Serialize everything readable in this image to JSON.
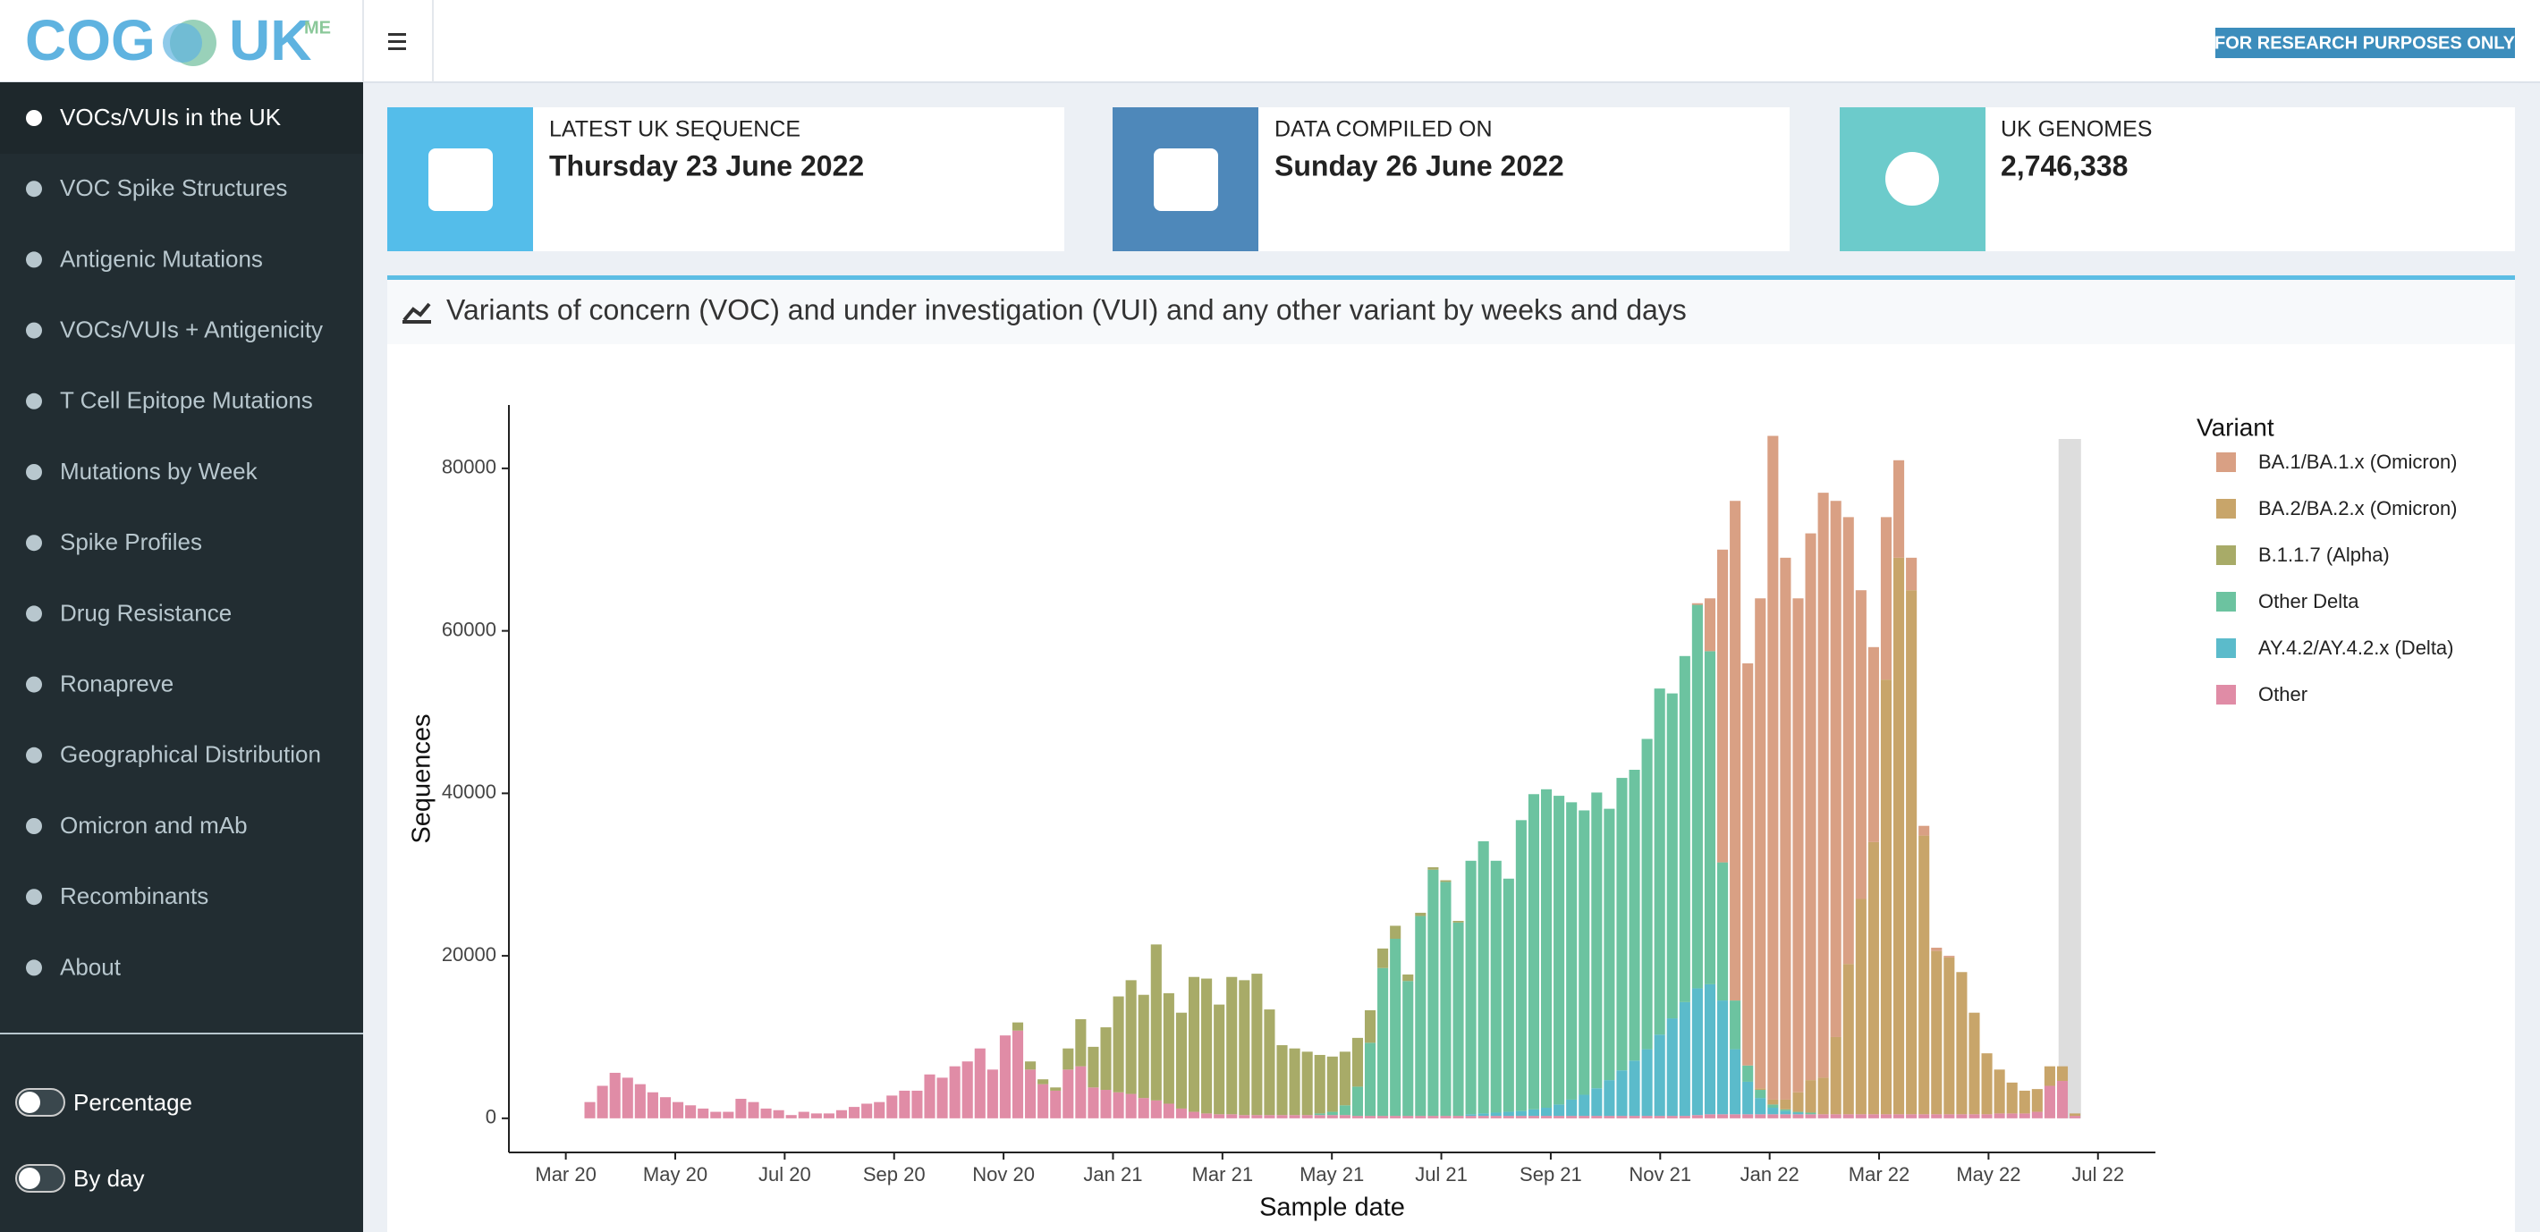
{
  "header": {
    "logo": {
      "main": "COG",
      "second": "UK",
      "superscript": "ME"
    },
    "badge": "FOR RESEARCH PURPOSES ONLY"
  },
  "sidebar": {
    "items": [
      "VOCs/VUIs in the UK",
      "VOC Spike Structures",
      "Antigenic Mutations",
      "VOCs/VUIs + Antigenicity",
      "T Cell Epitope Mutations",
      "Mutations by Week",
      "Spike Profiles",
      "Drug Resistance",
      "Ronapreve",
      "Geographical Distribution",
      "Omicron and mAb",
      "Recombinants",
      "About"
    ],
    "toggles": [
      "Percentage",
      "By day"
    ]
  },
  "cards": [
    {
      "label": "LATEST UK SEQUENCE",
      "value": "Thursday 23 June 2022"
    },
    {
      "label": "DATA COMPILED ON",
      "value": "Sunday 26 June 2022"
    },
    {
      "label": "UK GENOMES",
      "value": "2,746,338"
    }
  ],
  "panel": {
    "title": "Variants of concern (VOC) and under investigation (VUI) and any other variant by weeks and days"
  },
  "chart_data": {
    "type": "bar",
    "stacked": true,
    "x_label": "Sample date",
    "y_label": "Sequences",
    "legend_title": "Variant",
    "legend": "right",
    "grid": false,
    "x": [
      2.44,
      2.67,
      2.9,
      3.13,
      3.36,
      3.59,
      3.82,
      4.05,
      4.28,
      4.51,
      4.74,
      4.97,
      5.2,
      5.43,
      5.66,
      5.89,
      6.12,
      6.35,
      6.58,
      6.81,
      7.04,
      7.27,
      7.5,
      7.73,
      7.96,
      8.19,
      8.42,
      8.65,
      8.88,
      9.11,
      9.34,
      9.57,
      9.8,
      10.03,
      10.26,
      10.49,
      10.72,
      10.95,
      11.18,
      11.41,
      11.64,
      11.87,
      12.1,
      12.33,
      12.56,
      12.79,
      13.02,
      13.25,
      13.48,
      13.71,
      13.94,
      14.17,
      14.4,
      14.63,
      14.86,
      15.09,
      15.32,
      15.55,
      15.78,
      16.01,
      16.24,
      16.47,
      16.7,
      16.93,
      17.16,
      17.39,
      17.62,
      17.85,
      18.08,
      18.31,
      18.54,
      18.77,
      19,
      19.23,
      19.46,
      19.69,
      19.92,
      20.15,
      20.38,
      20.61,
      20.84,
      21.07,
      21.3,
      21.53,
      21.76,
      21.99,
      22.22,
      22.45,
      22.68,
      22.91,
      23.14,
      23.37,
      23.6,
      23.83,
      24.06,
      24.29,
      24.52,
      24.75,
      24.98,
      25.21,
      25.44,
      25.67,
      25.9,
      26.13,
      26.36,
      26.59,
      26.82,
      27.05,
      27.28,
      27.51,
      27.74,
      27.97,
      28.2,
      28.43,
      28.66,
      28.89,
      29.12,
      29.35,
      29.58
    ],
    "xlim": [
      0.96,
      31.05
    ],
    "xticks": [
      {
        "value": 2,
        "label": "Mar 20"
      },
      {
        "value": 4,
        "label": "May 20"
      },
      {
        "value": 6,
        "label": "Jul 20"
      },
      {
        "value": 8,
        "label": "Sep 20"
      },
      {
        "value": 10,
        "label": "Nov 20"
      },
      {
        "value": 12,
        "label": "Jan 21"
      },
      {
        "value": 14,
        "label": "Mar 21"
      },
      {
        "value": 16,
        "label": "May 21"
      },
      {
        "value": 18,
        "label": "Jul 21"
      },
      {
        "value": 20,
        "label": "Sep 21"
      },
      {
        "value": 22,
        "label": "Nov 21"
      },
      {
        "value": 24,
        "label": "Jan 22"
      },
      {
        "value": 26,
        "label": "Mar 22"
      },
      {
        "value": 28,
        "label": "May 22"
      },
      {
        "value": 30,
        "label": "Jul 22"
      }
    ],
    "ylim": [
      -4200,
      87800
    ],
    "yticks": [
      0,
      20000,
      40000,
      60000,
      80000
    ],
    "highlight_xrange": [
      29.28,
      29.69
    ],
    "highlight_color": "#dddddd",
    "series": [
      {
        "name": "BA.1/BA.1.x (Omicron)",
        "color": "#d9a084",
        "values": [
          0,
          0,
          0,
          0,
          0,
          0,
          0,
          0,
          0,
          0,
          0,
          0,
          0,
          0,
          0,
          0,
          0,
          0,
          0,
          0,
          0,
          0,
          0,
          0,
          0,
          0,
          0,
          0,
          0,
          0,
          0,
          0,
          0,
          0,
          0,
          0,
          0,
          0,
          0,
          0,
          0,
          0,
          0,
          0,
          0,
          0,
          0,
          0,
          0,
          0,
          0,
          0,
          0,
          0,
          0,
          0,
          0,
          0,
          0,
          0,
          0,
          0,
          0,
          0,
          0,
          0,
          0,
          0,
          0,
          0,
          0,
          0,
          0,
          0,
          0,
          0,
          0,
          0,
          0,
          0,
          0,
          0,
          0,
          0,
          0,
          0,
          0,
          0,
          200,
          6500,
          38500,
          61500,
          49500,
          60300,
          81700,
          66700,
          60800,
          67300,
          72000,
          66000,
          55000,
          38000,
          24000,
          20000,
          12000,
          4000,
          1200,
          400,
          200,
          0,
          0,
          0,
          0,
          0,
          0,
          0,
          0,
          0,
          0
        ]
      },
      {
        "name": "BA.2/BA.2.x (Omicron)",
        "color": "#c8a56a",
        "values": [
          0,
          0,
          0,
          0,
          0,
          0,
          0,
          0,
          0,
          0,
          0,
          0,
          0,
          0,
          0,
          0,
          0,
          0,
          0,
          0,
          0,
          0,
          0,
          0,
          0,
          0,
          0,
          0,
          0,
          0,
          0,
          0,
          0,
          0,
          0,
          0,
          0,
          0,
          0,
          0,
          0,
          0,
          0,
          0,
          0,
          0,
          0,
          0,
          0,
          0,
          0,
          0,
          0,
          0,
          0,
          0,
          0,
          0,
          0,
          0,
          0,
          0,
          0,
          0,
          0,
          0,
          0,
          0,
          0,
          0,
          0,
          0,
          0,
          0,
          0,
          0,
          0,
          0,
          0,
          0,
          0,
          0,
          0,
          0,
          0,
          0,
          0,
          0,
          0,
          0,
          0,
          0,
          0,
          200,
          600,
          1200,
          2400,
          4000,
          4500,
          9500,
          18500,
          26500,
          33500,
          53500,
          68500,
          64500,
          34300,
          20100,
          19300,
          17500,
          12500,
          7500,
          5400,
          3800,
          2800,
          2800,
          2400,
          1800,
          300
        ]
      },
      {
        "name": "B.1.1.7 (Alpha)",
        "color": "#a8ab68",
        "values": [
          0,
          0,
          0,
          0,
          0,
          0,
          0,
          0,
          0,
          0,
          0,
          0,
          0,
          0,
          0,
          0,
          0,
          0,
          0,
          0,
          0,
          0,
          0,
          0,
          0,
          0,
          0,
          0,
          0,
          0,
          0,
          0,
          0,
          0,
          1000,
          1000,
          600,
          400,
          2600,
          5800,
          5000,
          7700,
          11800,
          14000,
          12700,
          19200,
          13600,
          11800,
          16600,
          16600,
          13500,
          16900,
          16600,
          17400,
          13000,
          8600,
          8200,
          7800,
          7200,
          6800,
          6600,
          6000,
          4000,
          2400,
          1600,
          800,
          400,
          300,
          200,
          200,
          0,
          0,
          0,
          0,
          0,
          0,
          0,
          0,
          0,
          0,
          0,
          0,
          0,
          0,
          0,
          0,
          0,
          0,
          0,
          0,
          0,
          0,
          0,
          0,
          0,
          0,
          0,
          0,
          0,
          0,
          0,
          0,
          0,
          0,
          0,
          0,
          0,
          0,
          0,
          0,
          0,
          0,
          0,
          0,
          0,
          0,
          0,
          0,
          0
        ]
      },
      {
        "name": "Other Delta",
        "color": "#6cc3a0",
        "values": [
          0,
          0,
          0,
          0,
          0,
          0,
          0,
          0,
          0,
          0,
          0,
          0,
          0,
          0,
          0,
          0,
          0,
          0,
          0,
          0,
          0,
          0,
          0,
          0,
          0,
          0,
          0,
          0,
          0,
          0,
          0,
          0,
          0,
          0,
          0,
          0,
          0,
          0,
          0,
          0,
          0,
          0,
          0,
          0,
          0,
          0,
          0,
          0,
          0,
          0,
          0,
          0,
          0,
          0,
          0,
          0,
          0,
          0,
          200,
          400,
          1200,
          3600,
          9000,
          18200,
          21800,
          16600,
          24600,
          30300,
          28800,
          23800,
          31200,
          33500,
          31000,
          28700,
          35800,
          38800,
          39200,
          38000,
          36600,
          35000,
          36400,
          33400,
          36000,
          35800,
          38200,
          42600,
          40000,
          42600,
          47200,
          41000,
          17000,
          6000,
          2000,
          1000,
          400,
          200,
          100,
          200,
          0,
          0,
          0,
          0,
          0,
          0,
          0,
          0,
          0,
          0,
          0,
          0,
          0,
          0,
          0,
          0,
          0,
          0,
          0,
          0,
          0
        ]
      },
      {
        "name": "AY.4.2/AY.4.2.x (Delta)",
        "color": "#5bbbcb",
        "values": [
          0,
          0,
          0,
          0,
          0,
          0,
          0,
          0,
          0,
          0,
          0,
          0,
          0,
          0,
          0,
          0,
          0,
          0,
          0,
          0,
          0,
          0,
          0,
          0,
          0,
          0,
          0,
          0,
          0,
          0,
          0,
          0,
          0,
          0,
          0,
          0,
          0,
          0,
          0,
          0,
          0,
          0,
          0,
          0,
          0,
          0,
          0,
          0,
          0,
          0,
          0,
          0,
          0,
          0,
          0,
          0,
          0,
          0,
          0,
          0,
          0,
          0,
          0,
          0,
          0,
          0,
          0,
          0,
          0,
          0,
          200,
          300,
          400,
          500,
          600,
          800,
          1000,
          1400,
          2000,
          2600,
          3400,
          4400,
          5600,
          6800,
          8200,
          10000,
          12000,
          14000,
          15600,
          16000,
          14000,
          8000,
          4000,
          2000,
          800,
          400,
          200,
          0,
          0,
          0,
          0,
          0,
          0,
          0,
          0,
          0,
          0,
          0,
          0,
          0,
          0,
          0,
          0,
          0,
          0,
          0,
          0,
          0,
          0
        ]
      },
      {
        "name": "Other",
        "color": "#e08ca6",
        "values": [
          2000,
          4000,
          5600,
          5000,
          4200,
          3200,
          2600,
          2000,
          1600,
          1200,
          800,
          800,
          2400,
          2000,
          1200,
          1000,
          400,
          800,
          600,
          600,
          1000,
          1400,
          1800,
          2000,
          2800,
          3400,
          3400,
          5400,
          5000,
          6400,
          7000,
          8600,
          6000,
          10200,
          10800,
          6000,
          4200,
          3400,
          6000,
          6400,
          3800,
          3500,
          3200,
          3000,
          2500,
          2200,
          1800,
          1200,
          800,
          600,
          500,
          500,
          400,
          400,
          400,
          400,
          400,
          400,
          400,
          400,
          400,
          300,
          300,
          300,
          300,
          300,
          300,
          300,
          300,
          300,
          300,
          300,
          300,
          300,
          300,
          300,
          300,
          300,
          300,
          300,
          300,
          300,
          300,
          300,
          300,
          300,
          300,
          300,
          400,
          500,
          500,
          500,
          500,
          500,
          500,
          500,
          500,
          500,
          500,
          500,
          500,
          500,
          500,
          500,
          500,
          500,
          500,
          500,
          500,
          500,
          500,
          500,
          600,
          600,
          600,
          800,
          4000,
          4600,
          300
        ]
      }
    ]
  }
}
